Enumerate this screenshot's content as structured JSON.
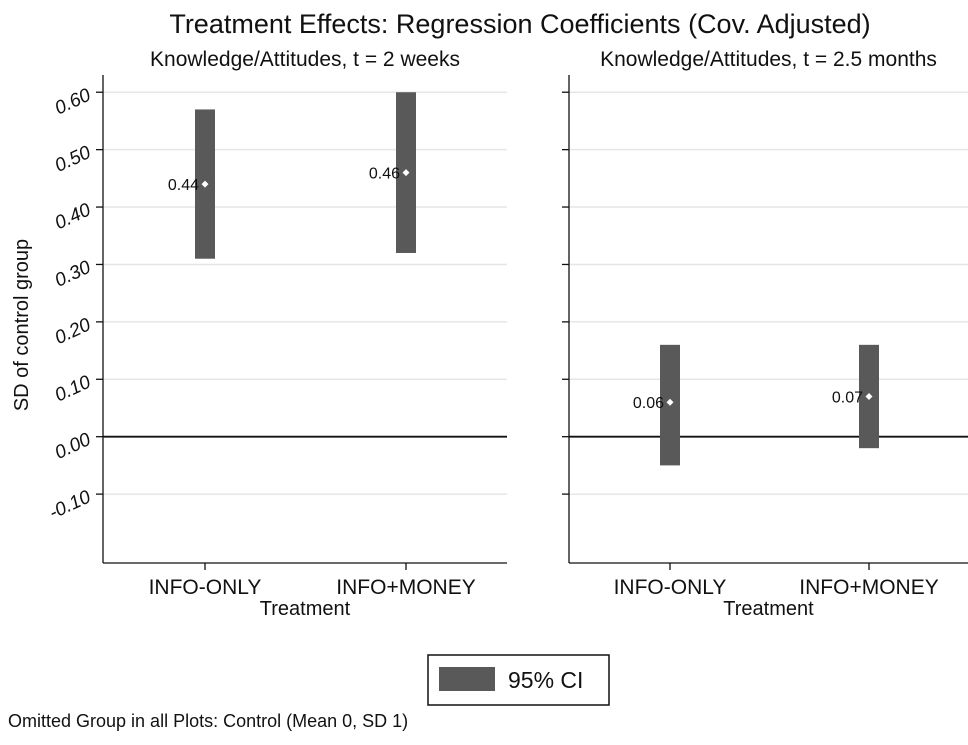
{
  "chart_data": {
    "type": "bar",
    "subtype": "coefficient-confidence-interval",
    "title": "Treatment Effects: Regression Coefficients (Cov. Adjusted)",
    "ylabel": "SD of control group",
    "xlabel": "Treatment",
    "ylim": [
      -0.22,
      0.63
    ],
    "yticks": [
      -0.1,
      0.0,
      0.1,
      0.2,
      0.3,
      0.4,
      0.5,
      0.6
    ],
    "ytick_labels": [
      "-0.10",
      "0.00",
      "0.10",
      "0.20",
      "0.30",
      "0.40",
      "0.50",
      "0.60"
    ],
    "grid": true,
    "reference_line": 0,
    "categories": [
      "INFO-ONLY",
      "INFO+MONEY"
    ],
    "panels": [
      {
        "subtitle": "Knowledge/Attitudes, t = 2 weeks",
        "points": [
          {
            "category": "INFO-ONLY",
            "estimate": 0.44,
            "label": "0.44",
            "ci_low": 0.31,
            "ci_high": 0.57
          },
          {
            "category": "INFO+MONEY",
            "estimate": 0.46,
            "label": "0.46",
            "ci_low": 0.32,
            "ci_high": 0.6
          }
        ]
      },
      {
        "subtitle": "Knowledge/Attitudes, t = 2.5 months",
        "points": [
          {
            "category": "INFO-ONLY",
            "estimate": 0.06,
            "label": "0.06",
            "ci_low": -0.05,
            "ci_high": 0.16
          },
          {
            "category": "INFO+MONEY",
            "estimate": 0.07,
            "label": "0.07",
            "ci_low": -0.02,
            "ci_high": 0.16
          }
        ]
      }
    ],
    "legend": {
      "label": "95% CI",
      "position": "bottom-center"
    },
    "note": "Omitted Group in all Plots: Control (Mean 0, SD 1)",
    "colors": {
      "ci_bar": "#595959",
      "marker": "#ffffff",
      "gridline": "#e6e6e6",
      "axis": "#111111"
    }
  }
}
